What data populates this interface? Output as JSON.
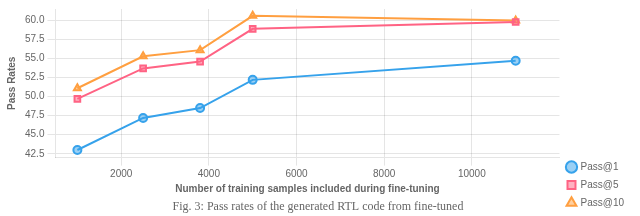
{
  "chart_data": {
    "type": "line",
    "x": [
      1000,
      2500,
      3800,
      5000,
      11000
    ],
    "series": [
      {
        "name": "Pass@1",
        "marker": "circle",
        "values": [
          43.0,
          47.2,
          48.5,
          52.2,
          54.7
        ]
      },
      {
        "name": "Pass@5",
        "marker": "square",
        "values": [
          49.7,
          53.7,
          54.6,
          58.9,
          59.8
        ]
      },
      {
        "name": "Pass@10",
        "marker": "triangle",
        "values": [
          51.1,
          55.3,
          56.1,
          60.6,
          60.0
        ]
      }
    ],
    "xlabel": "Number of training samples included during fine-tuning",
    "ylabel": "Pass Rates",
    "xlim": [
      500,
      12000
    ],
    "ylim": [
      42.0,
      61.5
    ],
    "xticks": [
      2000,
      4000,
      6000,
      8000,
      10000
    ],
    "yticks": [
      42.5,
      {
        "value": 45.0,
        "label": "45.0"
      },
      47.5,
      {
        "value": 50.0,
        "label": "50.0"
      },
      52.5,
      {
        "value": 55.0,
        "label": "55.0"
      },
      57.5,
      {
        "value": 60.0,
        "label": "60.0"
      }
    ],
    "grid": true,
    "legend": "lower right",
    "caption": "Fig. 3: Pass rates of the generated RTL code from fine-tuned"
  }
}
